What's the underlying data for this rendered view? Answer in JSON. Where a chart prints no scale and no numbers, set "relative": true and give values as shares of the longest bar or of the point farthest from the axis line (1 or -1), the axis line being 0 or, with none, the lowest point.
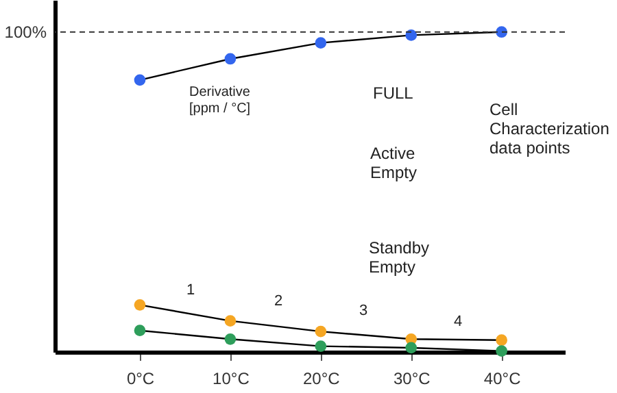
{
  "chart_data": {
    "type": "line",
    "relative": true,
    "marker": "circle",
    "line_style": "solid",
    "categories": [
      "0°C",
      "10°C",
      "20°C",
      "30°C",
      "40°C"
    ],
    "series": [
      {
        "color": "#3366ee",
        "values": [
          0.85,
          0.916,
          0.966,
          0.99,
          1.0
        ]
      },
      {
        "color": "#f5a623",
        "values": [
          0.147,
          0.097,
          0.064,
          0.04,
          0.037
        ]
      },
      {
        "color": "#2e9e5b",
        "values": [
          0.067,
          0.04,
          0.018,
          0.013,
          0.003
        ]
      }
    ],
    "ref_lines": [
      {
        "axis": "y",
        "value": 1,
        "label": "100%",
        "line_style": "dashed"
      }
    ],
    "annotations": [
      "Derivative\n[ppm / °C]",
      "FULL",
      "Cell\nCharacterization\ndata points",
      "Active\nEmpty",
      "Standby\nEmpty",
      "1",
      "2",
      "3",
      "4"
    ]
  }
}
